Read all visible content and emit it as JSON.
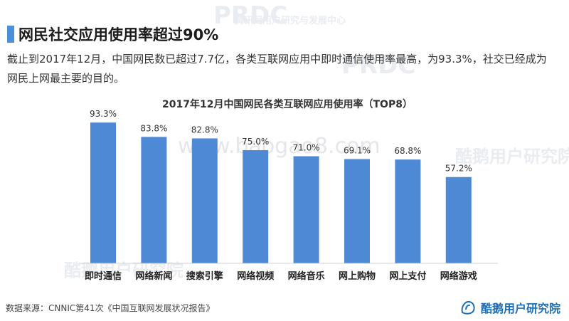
{
  "heading": {
    "title": "网民社交应用使用率超过90%",
    "description": "截止到2017年12月，中国网民数已超过7.7亿，各类互联网应用中即时通信使用率最高，为93.3%，社交已经成为网民上网最主要的目的。"
  },
  "watermarks": {
    "prdc": "PRDC",
    "text1": "腾讯网用户研究与发展中心",
    "text2": "酷鹅用户研究院",
    "site": "www.baogao8.com"
  },
  "chart_data": {
    "type": "bar",
    "title": "2017年12月中国网民各类互联网应用使用率（TOP8）",
    "categories": [
      "即时通信",
      "网络新闻",
      "搜索引擎",
      "网络视频",
      "网络音乐",
      "网上购物",
      "网上支付",
      "网络游戏"
    ],
    "values": [
      93.3,
      83.8,
      82.8,
      75.0,
      71.0,
      69.1,
      68.8,
      57.2
    ],
    "value_labels": [
      "93.3%",
      "83.8%",
      "82.8%",
      "75.0%",
      "71.0%",
      "69.1%",
      "68.8%",
      "57.2%"
    ],
    "ylim": [
      0,
      100
    ],
    "grid": false,
    "legend": "none",
    "color": "#4e89d6"
  },
  "footer": {
    "source": "数据来源：CNNIC第41次《中国互联网发展状况报告》",
    "brand": "酷鹅用户研究院",
    "brand_icon": "penguin-logo-icon"
  }
}
